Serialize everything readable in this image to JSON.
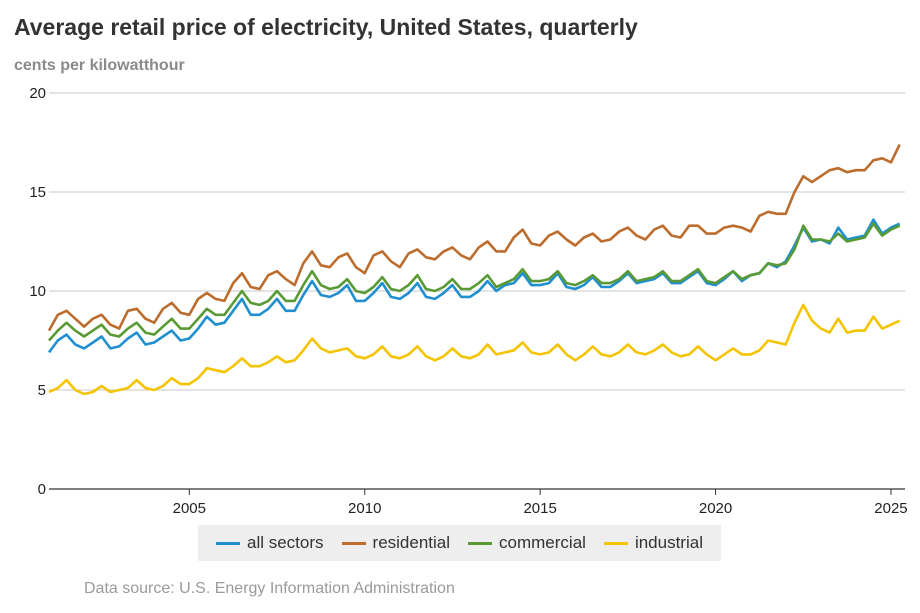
{
  "title": "Average retail price of electricity, United States, quarterly",
  "subtitle": "cents per kilowatthour",
  "source": "Data source: U.S. Energy Information Administration",
  "chart_data": {
    "type": "line",
    "ylim": [
      0,
      20
    ],
    "xlim": [
      2001.0,
      2025.4
    ],
    "yticks": [
      0,
      5,
      10,
      15,
      20
    ],
    "xticks": [
      2005,
      2010,
      2015,
      2020,
      2025
    ],
    "grid": true,
    "legend_position": "bottom-center",
    "series": [
      {
        "name": "all sectors",
        "color": "#1f8fd0",
        "start": 2001.0,
        "step": 0.25,
        "values": [
          6.9,
          7.5,
          7.8,
          7.3,
          7.1,
          7.4,
          7.7,
          7.1,
          7.2,
          7.6,
          7.9,
          7.3,
          7.4,
          7.7,
          8.0,
          7.5,
          7.6,
          8.1,
          8.7,
          8.3,
          8.4,
          9.0,
          9.6,
          8.8,
          8.8,
          9.1,
          9.6,
          9.0,
          9.0,
          9.8,
          10.5,
          9.8,
          9.7,
          9.9,
          10.3,
          9.5,
          9.5,
          9.9,
          10.4,
          9.7,
          9.6,
          9.9,
          10.4,
          9.7,
          9.6,
          9.9,
          10.3,
          9.7,
          9.7,
          10.0,
          10.5,
          10.0,
          10.3,
          10.4,
          10.9,
          10.3,
          10.3,
          10.4,
          10.9,
          10.2,
          10.1,
          10.3,
          10.7,
          10.2,
          10.2,
          10.5,
          10.9,
          10.4,
          10.5,
          10.6,
          10.9,
          10.4,
          10.4,
          10.7,
          11.0,
          10.4,
          10.3,
          10.6,
          11.0,
          10.5,
          10.8,
          10.9,
          11.4,
          11.2,
          11.5,
          12.3,
          13.2,
          12.5,
          12.6,
          12.4,
          13.2,
          12.6,
          12.7,
          12.8,
          13.6,
          12.9,
          13.2,
          13.4
        ]
      },
      {
        "name": "residential",
        "color": "#bc6c2d",
        "start": 2001.0,
        "step": 0.25,
        "values": [
          8.0,
          8.8,
          9.0,
          8.6,
          8.2,
          8.6,
          8.8,
          8.3,
          8.1,
          9.0,
          9.1,
          8.6,
          8.4,
          9.1,
          9.4,
          8.9,
          8.8,
          9.6,
          9.9,
          9.6,
          9.5,
          10.4,
          10.9,
          10.2,
          10.1,
          10.8,
          11.0,
          10.6,
          10.3,
          11.4,
          12.0,
          11.3,
          11.2,
          11.7,
          11.9,
          11.2,
          10.9,
          11.8,
          12.0,
          11.5,
          11.2,
          11.9,
          12.1,
          11.7,
          11.6,
          12.0,
          12.2,
          11.8,
          11.6,
          12.2,
          12.5,
          12.0,
          12.0,
          12.7,
          13.1,
          12.4,
          12.3,
          12.8,
          13.0,
          12.6,
          12.3,
          12.7,
          12.9,
          12.5,
          12.6,
          13.0,
          13.2,
          12.8,
          12.6,
          13.1,
          13.3,
          12.8,
          12.7,
          13.3,
          13.3,
          12.9,
          12.9,
          13.2,
          13.3,
          13.2,
          13.0,
          13.8,
          14.0,
          13.9,
          13.9,
          15.0,
          15.8,
          15.5,
          15.8,
          16.1,
          16.2,
          16.0,
          16.1,
          16.1,
          16.6,
          16.7,
          16.5,
          17.4
        ]
      },
      {
        "name": "commercial",
        "color": "#5a9a35",
        "start": 2001.0,
        "step": 0.25,
        "values": [
          7.5,
          8.0,
          8.4,
          8.0,
          7.7,
          8.0,
          8.3,
          7.8,
          7.7,
          8.1,
          8.4,
          7.9,
          7.8,
          8.2,
          8.6,
          8.1,
          8.1,
          8.6,
          9.1,
          8.8,
          8.8,
          9.4,
          10.0,
          9.4,
          9.3,
          9.5,
          10.0,
          9.5,
          9.5,
          10.3,
          11.0,
          10.3,
          10.1,
          10.2,
          10.6,
          10.0,
          9.9,
          10.2,
          10.7,
          10.1,
          10.0,
          10.3,
          10.8,
          10.1,
          10.0,
          10.2,
          10.6,
          10.1,
          10.1,
          10.4,
          10.8,
          10.2,
          10.4,
          10.6,
          11.1,
          10.5,
          10.5,
          10.6,
          11.0,
          10.4,
          10.3,
          10.5,
          10.8,
          10.4,
          10.4,
          10.6,
          11.0,
          10.5,
          10.6,
          10.7,
          11.0,
          10.5,
          10.5,
          10.8,
          11.1,
          10.5,
          10.4,
          10.7,
          11.0,
          10.6,
          10.8,
          10.9,
          11.4,
          11.3,
          11.4,
          12.1,
          13.3,
          12.6,
          12.6,
          12.5,
          12.9,
          12.5,
          12.6,
          12.7,
          13.4,
          12.8,
          13.1,
          13.3
        ]
      },
      {
        "name": "industrial",
        "color": "#f5c400",
        "start": 2001.0,
        "step": 0.25,
        "values": [
          4.9,
          5.1,
          5.5,
          5.0,
          4.8,
          4.9,
          5.2,
          4.9,
          5.0,
          5.1,
          5.5,
          5.1,
          5.0,
          5.2,
          5.6,
          5.3,
          5.3,
          5.6,
          6.1,
          6.0,
          5.9,
          6.2,
          6.6,
          6.2,
          6.2,
          6.4,
          6.7,
          6.4,
          6.5,
          7.0,
          7.6,
          7.1,
          6.9,
          7.0,
          7.1,
          6.7,
          6.6,
          6.8,
          7.2,
          6.7,
          6.6,
          6.8,
          7.2,
          6.7,
          6.5,
          6.7,
          7.1,
          6.7,
          6.6,
          6.8,
          7.3,
          6.8,
          6.9,
          7.0,
          7.4,
          6.9,
          6.8,
          6.9,
          7.3,
          6.8,
          6.5,
          6.8,
          7.2,
          6.8,
          6.7,
          6.9,
          7.3,
          6.9,
          6.8,
          7.0,
          7.3,
          6.9,
          6.7,
          6.8,
          7.2,
          6.8,
          6.5,
          6.8,
          7.1,
          6.8,
          6.8,
          7.0,
          7.5,
          7.4,
          7.3,
          8.4,
          9.3,
          8.5,
          8.1,
          7.9,
          8.6,
          7.9,
          8.0,
          8.0,
          8.7,
          8.1,
          8.3,
          8.5
        ]
      }
    ]
  }
}
